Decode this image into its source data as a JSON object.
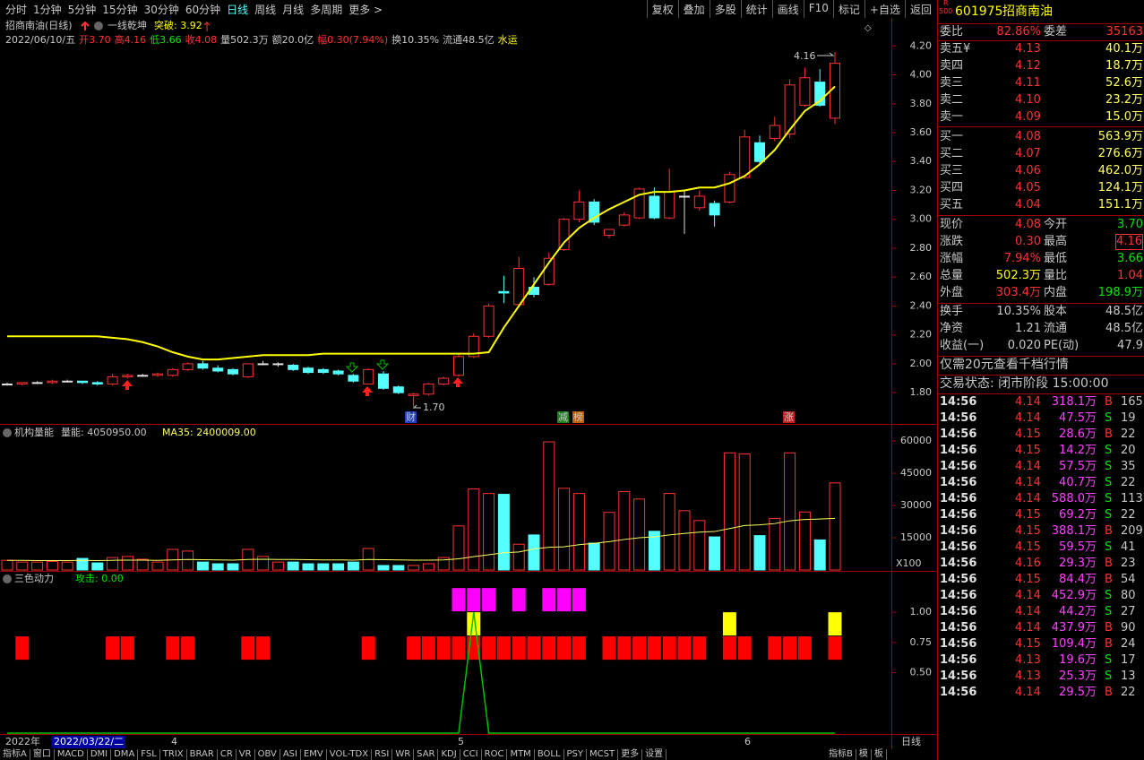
{
  "toolbar": {
    "periods": [
      "分时",
      "1分钟",
      "5分钟",
      "15分钟",
      "30分钟",
      "60分钟",
      "日线",
      "周线",
      "月线",
      "多周期",
      "更多 >"
    ],
    "buttons": [
      "复权",
      "叠加",
      "多股",
      "统计",
      "画线",
      "F10",
      "标记",
      "+自选",
      "返回"
    ]
  },
  "chart_data": [
    {
      "type": "candlestick",
      "title": "招商南油(日线)",
      "info": [
        "2022/06/10/五",
        "开3.70",
        "高4.16",
        "低3.66",
        "收4.08",
        "量502.3万",
        "额20.0亿",
        "幅0.30(7.94%)",
        "换10.35%",
        "流通48.5亿",
        "水运"
      ],
      "open": [
        1.86,
        1.86,
        1.87,
        1.87,
        1.88,
        1.88,
        1.87,
        1.86,
        1.91,
        1.92,
        1.92,
        1.92,
        1.96,
        2.0,
        1.97,
        1.96,
        1.91,
        2.0,
        2.0,
        1.99,
        1.97,
        1.96,
        1.95,
        1.92,
        1.86,
        1.93,
        1.84,
        1.78,
        1.79,
        1.86,
        1.92,
        2.05,
        2.19,
        2.5,
        2.41,
        2.53,
        2.55,
        2.79,
        3.0,
        3.12,
        2.89,
        2.96,
        3.01,
        3.16,
        3.01,
        3.16,
        3.08,
        3.11,
        3.12,
        3.29,
        3.53,
        3.56,
        3.59,
        3.79,
        3.95,
        3.7
      ],
      "high": [
        1.87,
        1.87,
        1.88,
        1.89,
        1.89,
        1.88,
        1.88,
        1.93,
        1.93,
        1.93,
        1.94,
        1.97,
        2.01,
        2.02,
        1.99,
        1.97,
        2.0,
        2.02,
        2.01,
        2.0,
        1.98,
        1.97,
        1.96,
        1.93,
        1.97,
        1.95,
        1.85,
        1.8,
        1.87,
        1.91,
        2.07,
        2.21,
        2.42,
        2.61,
        2.74,
        2.6,
        2.77,
        3.01,
        3.2,
        3.14,
        2.93,
        3.05,
        3.22,
        3.22,
        3.35,
        3.2,
        3.2,
        3.13,
        3.33,
        3.62,
        3.58,
        3.71,
        3.97,
        4.05,
        4.04,
        4.16
      ],
      "low": [
        1.85,
        1.85,
        1.86,
        1.86,
        1.87,
        1.86,
        1.85,
        1.85,
        1.9,
        1.91,
        1.91,
        1.91,
        1.95,
        1.96,
        1.94,
        1.92,
        1.9,
        1.99,
        1.98,
        1.95,
        1.93,
        1.93,
        1.92,
        1.87,
        1.86,
        1.82,
        1.79,
        1.7,
        1.78,
        1.85,
        1.91,
        2.04,
        2.18,
        2.42,
        2.4,
        2.46,
        2.54,
        2.78,
        2.98,
        2.96,
        2.87,
        2.95,
        3.0,
        3.0,
        3.0,
        2.9,
        3.06,
        2.95,
        3.11,
        3.28,
        3.38,
        3.54,
        3.56,
        3.78,
        3.78,
        3.66
      ],
      "close": [
        1.86,
        1.87,
        1.87,
        1.88,
        1.88,
        1.87,
        1.86,
        1.91,
        1.92,
        1.92,
        1.93,
        1.96,
        2.0,
        1.97,
        1.95,
        1.93,
        2.0,
        2.0,
        2.0,
        1.96,
        1.94,
        1.94,
        1.93,
        1.88,
        1.96,
        1.83,
        1.8,
        1.79,
        1.86,
        1.9,
        2.05,
        2.19,
        2.4,
        2.49,
        2.66,
        2.48,
        2.73,
        3.0,
        3.12,
        2.98,
        2.93,
        3.03,
        3.21,
        3.01,
        3.19,
        3.16,
        3.16,
        3.03,
        3.31,
        3.57,
        3.4,
        3.65,
        3.93,
        3.98,
        3.79,
        4.08
      ],
      "up_color": "#ff3232",
      "down_color": "#54ffff",
      "series": [
        {
          "name": "一线乾坤",
          "legend": "突破: 3.92",
          "color": "#ffff00",
          "values": [
            2.19,
            2.19,
            2.19,
            2.19,
            2.19,
            2.19,
            2.19,
            2.18,
            2.17,
            2.15,
            2.12,
            2.08,
            2.05,
            2.03,
            2.03,
            2.04,
            2.05,
            2.06,
            2.06,
            2.06,
            2.06,
            2.07,
            2.07,
            2.07,
            2.07,
            2.07,
            2.07,
            2.07,
            2.07,
            2.07,
            2.07,
            2.07,
            2.08,
            2.25,
            2.4,
            2.55,
            2.7,
            2.84,
            2.94,
            3.01,
            3.07,
            3.12,
            3.17,
            3.19,
            3.19,
            3.2,
            3.22,
            3.22,
            3.25,
            3.3,
            3.38,
            3.48,
            3.62,
            3.75,
            3.82,
            3.92
          ]
        }
      ],
      "annotations": [
        "4.16",
        "1.70"
      ],
      "events": [
        "财",
        "减",
        "榜",
        "涨"
      ],
      "ylim": [
        1.59,
        4.27
      ],
      "yticks": [
        {
          "value": 1.8,
          "label": "1.80"
        },
        {
          "value": 2.0,
          "label": "2.00"
        },
        {
          "value": 2.2,
          "label": "2.20"
        },
        {
          "value": 2.4,
          "label": "2.40"
        },
        {
          "value": 2.6,
          "label": "2.60"
        },
        {
          "value": 2.8,
          "label": "2.80"
        },
        {
          "value": 3.0,
          "label": "3.00"
        },
        {
          "value": 3.2,
          "label": "3.20"
        },
        {
          "value": 3.4,
          "label": "3.40"
        },
        {
          "value": 3.6,
          "label": "3.60"
        },
        {
          "value": 3.8,
          "label": "3.80"
        },
        {
          "value": 4.0,
          "label": "4.00"
        },
        {
          "value": 4.2,
          "label": "4.20"
        }
      ]
    },
    {
      "type": "bar",
      "title": "机构量能",
      "series": [
        {
          "legend": "量能: 4050950.00",
          "values": [
            4500,
            3700,
            3700,
            4000,
            3700,
            5400,
            3300,
            5800,
            6300,
            5000,
            3700,
            9600,
            8800,
            3700,
            2900,
            2900,
            9600,
            6300,
            3700,
            3700,
            2900,
            2900,
            2900,
            3700,
            10000,
            2100,
            2100,
            2100,
            2900,
            5800,
            20500,
            37700,
            35600,
            35200,
            12000,
            16300,
            59600,
            38000,
            35600,
            12500,
            26800,
            36500,
            33000,
            18000,
            35600,
            27600,
            23000,
            15400,
            54500,
            54000,
            16000,
            24000,
            54500,
            27000,
            14000,
            40509.5
          ]
        },
        {
          "legend": "MA35: 2400009.00",
          "color": "#ffff60",
          "values": [
            4500,
            4500,
            4400,
            4400,
            4400,
            4500,
            4400,
            4500,
            4600,
            4600,
            4500,
            4700,
            4900,
            4800,
            4700,
            4600,
            4900,
            5000,
            4900,
            4900,
            4800,
            4700,
            4700,
            4600,
            4900,
            4800,
            4700,
            4600,
            4600,
            4700,
            5200,
            6200,
            7100,
            8000,
            8400,
            9800,
            10600,
            10800,
            11800,
            12400,
            13200,
            14200,
            15000,
            15400,
            16300,
            17000,
            17600,
            17900,
            19300,
            20700,
            21000,
            21600,
            22900,
            23500,
            23700,
            24000.09
          ]
        }
      ],
      "scale_label": "X100",
      "ylim": [
        0,
        66700
      ],
      "yticks": [
        15000,
        30000,
        45000,
        60000
      ]
    },
    {
      "type": "blocks",
      "title": "三色动力",
      "series": [
        {
          "legend": "攻击: 0.00",
          "color": "#00c000",
          "values": [
            0,
            0,
            0,
            0,
            0,
            0,
            0,
            0,
            0,
            0,
            0,
            0,
            0,
            0,
            0,
            0,
            0,
            0,
            0,
            0,
            0,
            0,
            0,
            0,
            0,
            0,
            0,
            0,
            0,
            0,
            0,
            1,
            0,
            0,
            0,
            0,
            0,
            0,
            0,
            0,
            0,
            0,
            0,
            0,
            0,
            0,
            0,
            0,
            0,
            0,
            0,
            0,
            0,
            0,
            0,
            0
          ]
        },
        {
          "color": "#ff0000",
          "values": [
            null,
            0.8,
            null,
            null,
            null,
            null,
            null,
            0.8,
            0.8,
            null,
            null,
            0.8,
            0.8,
            null,
            null,
            null,
            0.8,
            0.8,
            null,
            null,
            null,
            null,
            null,
            null,
            0.8,
            null,
            null,
            0.8,
            0.8,
            0.8,
            0.8,
            0.8,
            0.8,
            0.8,
            0.8,
            0.8,
            0.8,
            0.8,
            0.8,
            null,
            0.8,
            0.8,
            0.8,
            0.8,
            0.8,
            0.8,
            0.8,
            null,
            0.8,
            0.8,
            null,
            0.8,
            0.8,
            0.8,
            null,
            0.8
          ]
        },
        {
          "color": "#ffff00",
          "values": [
            null,
            null,
            null,
            null,
            null,
            null,
            null,
            null,
            null,
            null,
            null,
            null,
            null,
            null,
            null,
            null,
            null,
            null,
            null,
            null,
            null,
            null,
            null,
            null,
            null,
            null,
            null,
            null,
            null,
            null,
            null,
            1,
            null,
            null,
            null,
            null,
            null,
            null,
            null,
            null,
            null,
            null,
            null,
            null,
            null,
            null,
            null,
            null,
            1,
            null,
            null,
            null,
            null,
            null,
            null,
            1
          ]
        },
        {
          "color": "#ff00ff",
          "values": [
            null,
            null,
            null,
            null,
            null,
            null,
            null,
            null,
            null,
            null,
            null,
            null,
            null,
            null,
            null,
            null,
            null,
            null,
            null,
            null,
            null,
            null,
            null,
            null,
            null,
            null,
            null,
            null,
            null,
            null,
            1.2,
            1.2,
            1.2,
            null,
            1.2,
            null,
            1.2,
            1.2,
            1.2,
            null,
            null,
            null,
            null,
            null,
            null,
            null,
            null,
            null,
            null,
            null,
            null,
            null,
            null,
            null,
            null,
            null
          ]
        }
      ],
      "ylim": [
        0,
        1.32
      ],
      "yticks": [
        {
          "value": 0.5,
          "label": "0.50"
        },
        {
          "value": 0.75,
          "label": "0.75"
        },
        {
          "value": 1,
          "label": "1.00"
        }
      ]
    }
  ],
  "date_axis": [
    "2022年",
    "2022/03/22/二",
    "4",
    "5",
    "6",
    "日线"
  ],
  "tabs": [
    "指标A",
    "窗口",
    "MACD",
    "DMI",
    "DMA",
    "FSL",
    "TRIX",
    "BRAR",
    "CR",
    "VR",
    "OBV",
    "ASI",
    "EMV",
    "VOL-TDX",
    "RSI",
    "WR",
    "SAR",
    "KDJ",
    "CCI",
    "ROC",
    "MTM",
    "BOLL",
    "PSY",
    "MCST",
    "更多",
    "设置"
  ],
  "tabs_right": [
    "指标B",
    "模",
    "板"
  ],
  "quote": {
    "badge": [
      "R",
      "500"
    ],
    "code": "601975",
    "name": "招商南油",
    "weibi": [
      "委比",
      "82.86%",
      "委差",
      "35163"
    ],
    "asks": [
      [
        "卖五¥",
        "4.13",
        "40.1万"
      ],
      [
        "卖四",
        "4.12",
        "18.7万"
      ],
      [
        "卖三",
        "4.11",
        "52.6万"
      ],
      [
        "卖二",
        "4.10",
        "23.2万"
      ],
      [
        "卖一",
        "4.09",
        "15.0万"
      ]
    ],
    "bids": [
      [
        "买一",
        "4.08",
        "563.9万"
      ],
      [
        "买二",
        "4.07",
        "276.6万"
      ],
      [
        "买三",
        "4.06",
        "462.0万"
      ],
      [
        "买四",
        "4.05",
        "124.1万"
      ],
      [
        "买五",
        "4.04",
        "151.1万"
      ]
    ],
    "stats": [
      [
        "现价",
        "4.08",
        "今开",
        "3.70"
      ],
      [
        "涨跌",
        "0.30",
        "最高",
        "4.16"
      ],
      [
        "涨幅",
        "7.94%",
        "最低",
        "3.66"
      ],
      [
        "总量",
        "502.3万",
        "量比",
        "1.04"
      ],
      [
        "外盘",
        "303.4万",
        "内盘",
        "198.9万"
      ],
      [
        "换手",
        "10.35%",
        "股本",
        "48.5亿"
      ],
      [
        "净资",
        "1.21",
        "流通",
        "48.5亿"
      ],
      [
        "收益(一)",
        "0.020",
        "PE(动)",
        "47.9"
      ]
    ],
    "notice": "仅需20元查看千档行情",
    "status": "交易状态: 闭市阶段 15:00:00",
    "side_colors": {
      "B": "#ff3232",
      "S": "#00e600"
    },
    "ticks": [
      [
        "14:56",
        "4.14",
        "318.1万",
        "B",
        "165"
      ],
      [
        "14:56",
        "4.14",
        "47.5万",
        "S",
        "19"
      ],
      [
        "14:56",
        "4.15",
        "28.6万",
        "B",
        "22"
      ],
      [
        "14:56",
        "4.15",
        "14.2万",
        "S",
        "20"
      ],
      [
        "14:56",
        "4.14",
        "57.5万",
        "S",
        "35"
      ],
      [
        "14:56",
        "4.14",
        "40.7万",
        "S",
        "22"
      ],
      [
        "14:56",
        "4.14",
        "588.0万",
        "S",
        "113"
      ],
      [
        "14:56",
        "4.15",
        "69.2万",
        "S",
        "22"
      ],
      [
        "14:56",
        "4.15",
        "388.1万",
        "B",
        "209"
      ],
      [
        "14:56",
        "4.15",
        "59.5万",
        "S",
        "41"
      ],
      [
        "14:56",
        "4.16",
        "29.3万",
        "B",
        "23"
      ],
      [
        "14:56",
        "4.15",
        "84.4万",
        "B",
        "54"
      ],
      [
        "14:56",
        "4.14",
        "452.9万",
        "S",
        "80"
      ],
      [
        "14:56",
        "4.14",
        "44.2万",
        "S",
        "27"
      ],
      [
        "14:56",
        "4.14",
        "437.9万",
        "B",
        "90"
      ],
      [
        "14:56",
        "4.15",
        "109.4万",
        "B",
        "24"
      ],
      [
        "14:56",
        "4.13",
        "19.6万",
        "S",
        "17"
      ],
      [
        "14:56",
        "4.13",
        "25.3万",
        "S",
        "13"
      ],
      [
        "14:56",
        "4.14",
        "29.5万",
        "B",
        "22"
      ]
    ]
  }
}
